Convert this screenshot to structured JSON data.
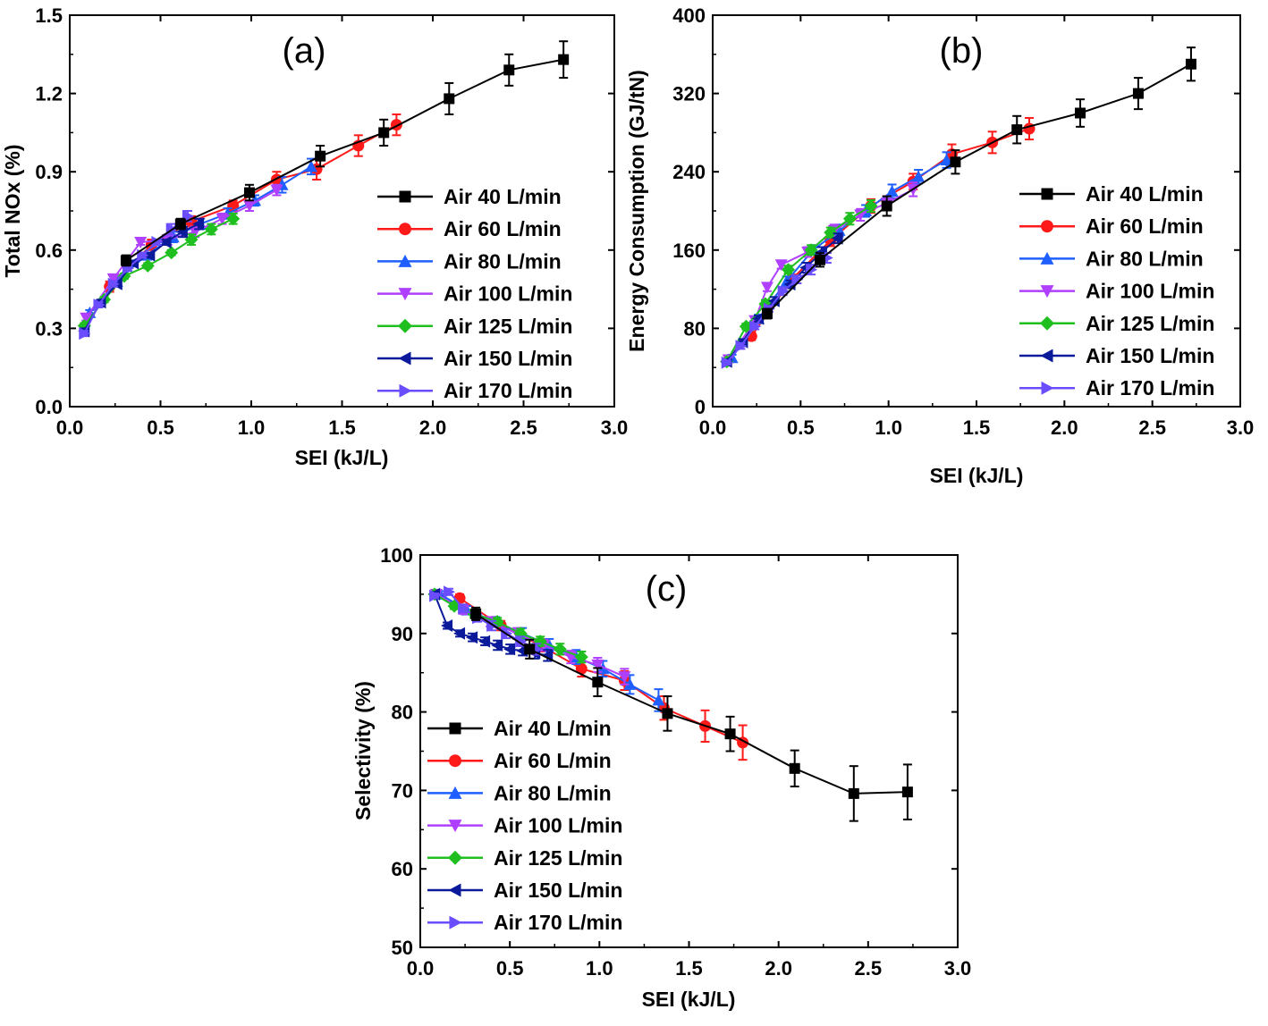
{
  "chart_data": [
    {
      "type": "line",
      "panel_label": "(a)",
      "xlabel": "SEI (kJ/L)",
      "ylabel": "Total NOx (%)",
      "xlim": [
        0.0,
        3.0
      ],
      "ylim": [
        0.0,
        1.5
      ],
      "xticks": [
        "0.0",
        "0.5",
        "1.0",
        "1.5",
        "2.0",
        "2.5",
        "3.0"
      ],
      "yticks": [
        "0.0",
        "0.3",
        "0.6",
        "0.9",
        "1.2",
        "1.5"
      ],
      "legend_position": "lower-right",
      "series": [
        {
          "name": "Air 40 L/min",
          "color": "#000000",
          "marker": "square",
          "x": [
            0.31,
            0.61,
            0.99,
            1.38,
            1.73,
            2.09,
            2.42,
            2.72
          ],
          "y": [
            0.56,
            0.7,
            0.82,
            0.96,
            1.05,
            1.18,
            1.29,
            1.33
          ],
          "err": [
            0.02,
            0.02,
            0.03,
            0.04,
            0.05,
            0.06,
            0.06,
            0.07
          ]
        },
        {
          "name": "Air 60 L/min",
          "color": "#ff1a1a",
          "marker": "circle",
          "x": [
            0.22,
            0.45,
            0.67,
            0.9,
            1.14,
            1.36,
            1.59,
            1.8
          ],
          "y": [
            0.46,
            0.62,
            0.71,
            0.77,
            0.87,
            0.91,
            1.0,
            1.08
          ],
          "err": [
            0.02,
            0.02,
            0.02,
            0.02,
            0.03,
            0.04,
            0.04,
            0.04
          ]
        },
        {
          "name": "Air 80 L/min",
          "color": "#1f5fff",
          "marker": "triangle-up",
          "x": [
            0.11,
            0.26,
            0.42,
            0.57,
            0.72,
            0.87,
            1.02,
            1.17,
            1.33
          ],
          "y": [
            0.36,
            0.48,
            0.58,
            0.65,
            0.7,
            0.74,
            0.79,
            0.85,
            0.92
          ],
          "err": [
            0.01,
            0.01,
            0.01,
            0.02,
            0.02,
            0.02,
            0.02,
            0.03,
            0.03
          ]
        },
        {
          "name": "Air 100 L/min",
          "color": "#b040ff",
          "marker": "triangle-down",
          "x": [
            0.09,
            0.24,
            0.39,
            0.54,
            0.69,
            0.84,
            0.99,
            1.14
          ],
          "y": [
            0.34,
            0.49,
            0.63,
            0.64,
            0.67,
            0.72,
            0.77,
            0.83
          ],
          "err": [
            0.01,
            0.01,
            0.01,
            0.02,
            0.02,
            0.02,
            0.02,
            0.02
          ]
        },
        {
          "name": "Air 125 L/min",
          "color": "#1fbf1f",
          "marker": "diamond",
          "x": [
            0.08,
            0.19,
            0.3,
            0.43,
            0.56,
            0.67,
            0.78,
            0.9
          ],
          "y": [
            0.31,
            0.41,
            0.5,
            0.54,
            0.59,
            0.64,
            0.68,
            0.72
          ],
          "err": [
            0.01,
            0.01,
            0.01,
            0.01,
            0.01,
            0.02,
            0.02,
            0.02
          ]
        },
        {
          "name": "Air 150 L/min",
          "color": "#0a1a9a",
          "marker": "triangle-left",
          "x": [
            0.08,
            0.17,
            0.26,
            0.35,
            0.44,
            0.53,
            0.62,
            0.71
          ],
          "y": [
            0.29,
            0.4,
            0.47,
            0.55,
            0.58,
            0.63,
            0.67,
            0.7
          ],
          "err": [
            0.01,
            0.01,
            0.01,
            0.01,
            0.01,
            0.01,
            0.02,
            0.02
          ]
        },
        {
          "name": "Air 170 L/min",
          "color": "#6a4dff",
          "marker": "triangle-right",
          "x": [
            0.08,
            0.16,
            0.24,
            0.32,
            0.4,
            0.48,
            0.56,
            0.65
          ],
          "y": [
            0.28,
            0.39,
            0.47,
            0.53,
            0.58,
            0.63,
            0.68,
            0.73
          ],
          "err": [
            0.01,
            0.01,
            0.01,
            0.01,
            0.01,
            0.01,
            0.02,
            0.02
          ]
        }
      ]
    },
    {
      "type": "line",
      "panel_label": "(b)",
      "xlabel": "SEI (kJ/L)",
      "ylabel": "Energy Consumption (GJ/tN)",
      "xlim": [
        0.0,
        3.0
      ],
      "ylim": [
        0,
        400
      ],
      "xticks": [
        "0.0",
        "0.5",
        "1.0",
        "1.5",
        "2.0",
        "2.5",
        "3.0"
      ],
      "yticks": [
        "0",
        "80",
        "160",
        "240",
        "320",
        "400"
      ],
      "legend_position": "lower-right",
      "series": [
        {
          "name": "Air 40 L/min",
          "color": "#000000",
          "marker": "square",
          "x": [
            0.31,
            0.61,
            0.99,
            1.38,
            1.73,
            2.09,
            2.42,
            2.72
          ],
          "y": [
            95,
            150,
            205,
            250,
            283,
            300,
            320,
            350
          ],
          "err": [
            5,
            7,
            10,
            12,
            14,
            14,
            16,
            17
          ]
        },
        {
          "name": "Air 60 L/min",
          "color": "#ff1a1a",
          "marker": "circle",
          "x": [
            0.22,
            0.45,
            0.67,
            0.9,
            1.14,
            1.36,
            1.59,
            1.8
          ],
          "y": [
            72,
            130,
            170,
            205,
            230,
            258,
            270,
            284
          ],
          "err": [
            4,
            5,
            6,
            7,
            8,
            10,
            11,
            11
          ]
        },
        {
          "name": "Air 80 L/min",
          "color": "#1f5fff",
          "marker": "triangle-up",
          "x": [
            0.11,
            0.26,
            0.42,
            0.57,
            0.72,
            0.87,
            1.02,
            1.17,
            1.33
          ],
          "y": [
            50,
            90,
            128,
            160,
            180,
            200,
            220,
            235,
            252
          ],
          "err": [
            3,
            4,
            5,
            5,
            6,
            6,
            7,
            7,
            8
          ]
        },
        {
          "name": "Air 100 L/min",
          "color": "#b040ff",
          "marker": "triangle-down",
          "x": [
            0.09,
            0.24,
            0.31,
            0.39,
            0.54,
            0.69,
            0.84,
            0.99,
            1.14
          ],
          "y": [
            48,
            88,
            122,
            145,
            158,
            180,
            196,
            208,
            222
          ],
          "err": [
            3,
            3,
            4,
            4,
            5,
            6,
            6,
            7,
            7
          ]
        },
        {
          "name": "Air 125 L/min",
          "color": "#1fbf1f",
          "marker": "diamond",
          "x": [
            0.08,
            0.19,
            0.3,
            0.43,
            0.56,
            0.67,
            0.78,
            0.9
          ],
          "y": [
            46,
            82,
            105,
            140,
            160,
            178,
            192,
            205
          ],
          "err": [
            2,
            3,
            4,
            4,
            5,
            5,
            6,
            6
          ]
        },
        {
          "name": "Air 150 L/min",
          "color": "#0a1a9a",
          "marker": "triangle-left",
          "x": [
            0.08,
            0.17,
            0.26,
            0.35,
            0.44,
            0.53,
            0.62,
            0.71
          ],
          "y": [
            46,
            66,
            90,
            108,
            125,
            142,
            158,
            172
          ],
          "err": [
            2,
            3,
            3,
            4,
            4,
            5,
            5,
            5
          ]
        },
        {
          "name": "Air 170 L/min",
          "color": "#6a4dff",
          "marker": "triangle-right",
          "x": [
            0.08,
            0.16,
            0.24,
            0.32,
            0.4,
            0.48,
            0.56,
            0.65
          ],
          "y": [
            45,
            62,
            82,
            100,
            118,
            130,
            140,
            152
          ],
          "err": [
            2,
            3,
            3,
            3,
            4,
            4,
            5,
            5
          ]
        }
      ]
    },
    {
      "type": "line",
      "panel_label": "(c)",
      "xlabel": "SEI (kJ/L)",
      "ylabel": "Selectivity (%)",
      "xlim": [
        0.0,
        3.0
      ],
      "ylim": [
        50,
        100
      ],
      "xticks": [
        "0.0",
        "0.5",
        "1.0",
        "1.5",
        "2.0",
        "2.5",
        "3.0"
      ],
      "yticks": [
        "50",
        "60",
        "70",
        "80",
        "90",
        "100"
      ],
      "legend_position": "lower-left",
      "series": [
        {
          "name": "Air 40 L/min",
          "color": "#000000",
          "marker": "square",
          "x": [
            0.31,
            0.61,
            0.99,
            1.38,
            1.73,
            2.09,
            2.42,
            2.72
          ],
          "y": [
            92.5,
            88.0,
            83.8,
            79.8,
            77.2,
            72.8,
            69.6,
            69.8
          ],
          "err": [
            0.8,
            1.2,
            1.8,
            2.2,
            2.2,
            2.3,
            3.5,
            3.5
          ]
        },
        {
          "name": "Air 60 L/min",
          "color": "#ff1a1a",
          "marker": "circle",
          "x": [
            0.22,
            0.45,
            0.67,
            0.9,
            1.14,
            1.36,
            1.59,
            1.8
          ],
          "y": [
            94.5,
            91.0,
            88.5,
            85.5,
            84.0,
            80.5,
            78.2,
            76.1
          ],
          "err": [
            0.5,
            0.6,
            0.8,
            1.0,
            1.2,
            1.5,
            2.0,
            2.2
          ]
        },
        {
          "name": "Air 80 L/min",
          "color": "#1f5fff",
          "marker": "triangle-up",
          "x": [
            0.11,
            0.26,
            0.42,
            0.57,
            0.72,
            0.87,
            1.02,
            1.17,
            1.33
          ],
          "y": [
            95.0,
            93.0,
            91.5,
            90.0,
            88.5,
            87.0,
            85.5,
            83.5,
            81.5
          ],
          "err": [
            0.4,
            0.5,
            0.6,
            0.7,
            0.8,
            0.9,
            1.0,
            1.2,
            1.4
          ]
        },
        {
          "name": "Air 100 L/min",
          "color": "#b040ff",
          "marker": "triangle-down",
          "x": [
            0.09,
            0.24,
            0.39,
            0.54,
            0.69,
            0.84,
            0.99,
            1.14
          ],
          "y": [
            95.0,
            93.0,
            91.5,
            90.0,
            88.5,
            87.0,
            86.0,
            84.5
          ],
          "err": [
            0.4,
            0.5,
            0.6,
            0.7,
            0.7,
            0.8,
            0.9,
            1.0
          ]
        },
        {
          "name": "Air 125 L/min",
          "color": "#1fbf1f",
          "marker": "diamond",
          "x": [
            0.08,
            0.19,
            0.3,
            0.43,
            0.56,
            0.67,
            0.78,
            0.9
          ],
          "y": [
            95.0,
            93.5,
            92.5,
            91.5,
            90.0,
            89.0,
            88.0,
            87.0
          ],
          "err": [
            0.3,
            0.4,
            0.5,
            0.5,
            0.6,
            0.6,
            0.7,
            0.7
          ]
        },
        {
          "name": "Air 150 L/min",
          "color": "#0a1a9a",
          "marker": "triangle-left",
          "x": [
            0.08,
            0.15,
            0.22,
            0.29,
            0.36,
            0.43,
            0.5,
            0.57,
            0.64,
            0.71
          ],
          "y": [
            95.0,
            91.0,
            90.0,
            89.5,
            89.0,
            88.5,
            88.0,
            87.8,
            87.5,
            87.2
          ],
          "err": [
            0.3,
            0.4,
            0.4,
            0.5,
            0.5,
            0.6,
            0.6,
            0.6,
            0.7,
            0.7
          ]
        },
        {
          "name": "Air 170 L/min",
          "color": "#6a4dff",
          "marker": "triangle-right",
          "x": [
            0.08,
            0.16,
            0.24,
            0.32,
            0.4,
            0.48,
            0.56,
            0.65
          ],
          "y": [
            94.8,
            95.3,
            93.2,
            92.0,
            91.0,
            90.0,
            89.0,
            88.0
          ],
          "err": [
            0.3,
            0.4,
            0.5,
            0.5,
            0.6,
            0.6,
            0.6,
            0.7
          ]
        }
      ]
    }
  ]
}
